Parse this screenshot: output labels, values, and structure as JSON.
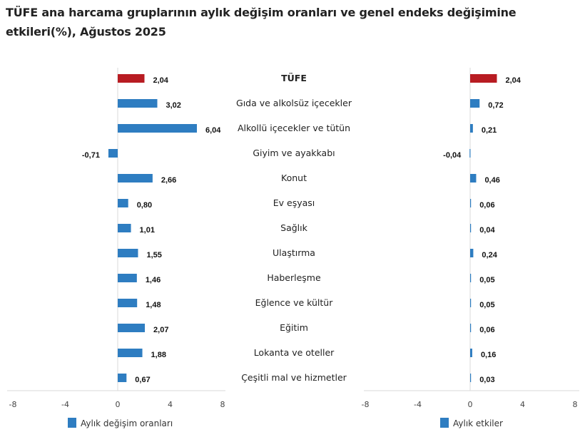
{
  "chart_data": [
    {
      "type": "bar",
      "orientation": "horizontal",
      "title": "TÜFE ana harcama gruplarının aylık değişim oranları ve genel endeks değişimine etkileri(%), Ağustos 2025",
      "categories": [
        "TÜFE",
        "Gıda ve alkolsüz içecekler",
        "Alkollü içecekler ve tütün",
        "Giyim ve ayakkabı",
        "Konut",
        "Ev eşyası",
        "Sağlık",
        "Ulaştırma",
        "Haberleşme",
        "Eğlence ve kültür",
        "Eğitim",
        "Lokanta ve oteller",
        "Çeşitli mal ve hizmetler"
      ],
      "series": [
        {
          "name": "Aylık değişim oranları",
          "values": [
            2.04,
            3.02,
            6.04,
            -0.71,
            2.66,
            0.8,
            1.01,
            1.55,
            1.46,
            1.48,
            2.07,
            1.88,
            0.67
          ],
          "labels": [
            "2,04",
            "3,02",
            "6,04",
            "-0,71",
            "2,66",
            "0,80",
            "1,01",
            "1,55",
            "1,46",
            "1,48",
            "2,07",
            "1,88",
            "0,67"
          ]
        }
      ],
      "xlim": [
        -8,
        8
      ],
      "xticks": [
        "-8",
        "-4",
        "0",
        "4",
        "8"
      ],
      "grid": false,
      "legend": "bottom",
      "colors": {
        "bar": "#2e7dc1",
        "highlight": "#b81c22"
      }
    },
    {
      "type": "bar",
      "orientation": "horizontal",
      "categories": [
        "TÜFE",
        "Gıda ve alkolsüz içecekler",
        "Alkollü içecekler ve tütün",
        "Giyim ve ayakkabı",
        "Konut",
        "Ev eşyası",
        "Sağlık",
        "Ulaştırma",
        "Haberleşme",
        "Eğlence ve kültür",
        "Eğitim",
        "Lokanta ve oteller",
        "Çeşitli mal ve hizmetler"
      ],
      "series": [
        {
          "name": "Aylık etkiler",
          "values": [
            2.04,
            0.72,
            0.21,
            -0.04,
            0.46,
            0.06,
            0.04,
            0.24,
            0.05,
            0.05,
            0.06,
            0.16,
            0.03
          ],
          "labels": [
            "2,04",
            "0,72",
            "0,21",
            "-0,04",
            "0,46",
            "0,06",
            "0,04",
            "0,24",
            "0,05",
            "0,05",
            "0,06",
            "0,16",
            "0,03"
          ]
        }
      ],
      "xlim": [
        -8,
        8
      ],
      "xticks": [
        "-8",
        "-4",
        "0",
        "4",
        "8"
      ],
      "grid": false,
      "legend": "bottom",
      "colors": {
        "bar": "#2e7dc1",
        "highlight": "#b81c22"
      }
    }
  ]
}
